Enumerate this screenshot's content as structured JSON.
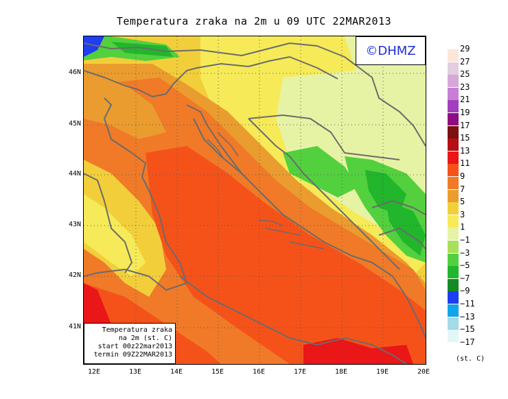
{
  "title": "Temperatura zraka na 2m u 09 UTC 22MAR2013",
  "logo": "©DHMZ",
  "info_box": [
    "Temperatura zraka",
    "na 2m (st. C)",
    "start 00z22mar2013",
    "termin 09Z22MAR2013"
  ],
  "lat_labels": [
    "46N",
    "45N",
    "44N",
    "43N",
    "42N",
    "41N"
  ],
  "lon_labels": [
    "12E",
    "13E",
    "14E",
    "15E",
    "16E",
    "17E",
    "18E",
    "19E",
    "20E"
  ],
  "legend": {
    "unit": "(st. C)",
    "labels": [
      "29",
      "27",
      "25",
      "23",
      "21",
      "19",
      "17",
      "15",
      "13",
      "11",
      "9",
      "7",
      "5",
      "3",
      "1",
      "−1",
      "−3",
      "−5",
      "−7",
      "−9",
      "−11",
      "−13",
      "−15",
      "−17"
    ],
    "colors": [
      "#fbe6d8",
      "#e3cde0",
      "#d6a8d8",
      "#c77ed6",
      "#a23fbf",
      "#8d0f7f",
      "#7b0f12",
      "#b40f12",
      "#ea1617",
      "#f5521a",
      "#f07a28",
      "#eb9c2e",
      "#f2cf3a",
      "#f6ea58",
      "#e6f3a4",
      "#a9e05a",
      "#53d03e",
      "#21b62c",
      "#148a22",
      "#1f3df1",
      "#12a3e8",
      "#a3dbe6",
      "#e3f6f8"
    ]
  }
}
